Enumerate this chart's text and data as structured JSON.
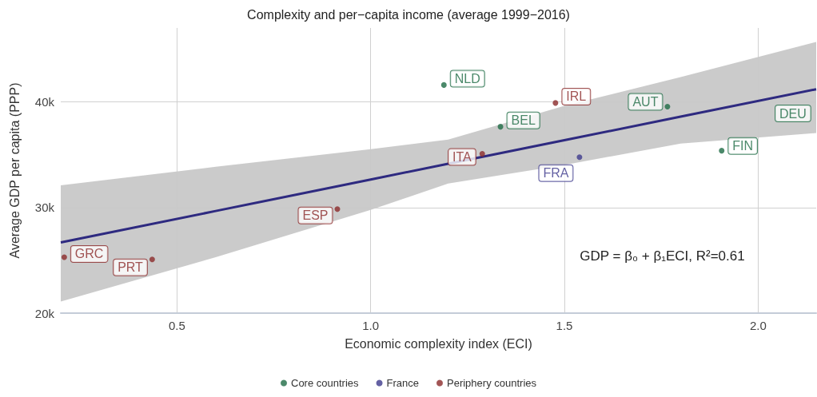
{
  "chart_data": {
    "type": "scatter",
    "title": "Complexity and per−capita income (average 1999−2016)",
    "xlabel": "Economic complexity index (ECI)",
    "ylabel": "Average GDP per capita (PPP)",
    "xlim": [
      0.2,
      2.15
    ],
    "ylim": [
      20000,
      47000
    ],
    "xticks": [
      0.5,
      {
        "value": 1,
        "label": "1.0"
      },
      1.5,
      {
        "value": 2,
        "label": "2.0"
      }
    ],
    "yticks": [
      {
        "value": 20000,
        "label": "20k"
      },
      {
        "value": 30000,
        "label": "30k"
      },
      {
        "value": 40000,
        "label": "40k"
      }
    ],
    "grid": true,
    "legend": "bottom",
    "marker": "circle",
    "series": [
      {
        "name": "Core countries",
        "color": "#1e6b45",
        "x": [
          1.189,
          1.335,
          1.766,
          1.906
        ],
        "values": [
          41600,
          37650,
          39550,
          35380
        ],
        "value_labels": [
          "NLD",
          "BEL",
          "AUT",
          "FIN"
        ]
      },
      {
        "name": "France",
        "color": "#3d3a8c",
        "x": [
          1.539
        ],
        "values": [
          34770
        ],
        "value_labels": [
          "FRA"
        ]
      },
      {
        "name": "Periphery countries",
        "color": "#8b2a2a",
        "x": [
          0.209,
          0.436,
          0.914,
          1.288,
          1.477
        ],
        "values": [
          25300,
          25080,
          29850,
          35080,
          39900
        ],
        "value_labels": [
          "GRC",
          "PRT",
          "ESP",
          "ITA",
          "IRL"
        ]
      },
      {
        "type": "line",
        "color": "#2e2a80",
        "line_style": "solid",
        "marker": "none",
        "x": [
          0.2,
          0.6,
          1.0,
          1.2,
          1.5,
          1.8,
          2.15
        ],
        "values": [
          26700,
          29670,
          32650,
          34140,
          36370,
          38600,
          41200
        ],
        "lower": [
          21100,
          25300,
          29770,
          32270,
          34020,
          36060,
          37050
        ],
        "upper": [
          32100,
          33860,
          35530,
          36440,
          39620,
          42350,
          45680
        ]
      }
    ],
    "annotations": [
      "GDP = β₀ + β₁ECI, R²=0.61",
      {
        "text": "DEU",
        "x": 2.09,
        "y": 38900
      }
    ]
  }
}
